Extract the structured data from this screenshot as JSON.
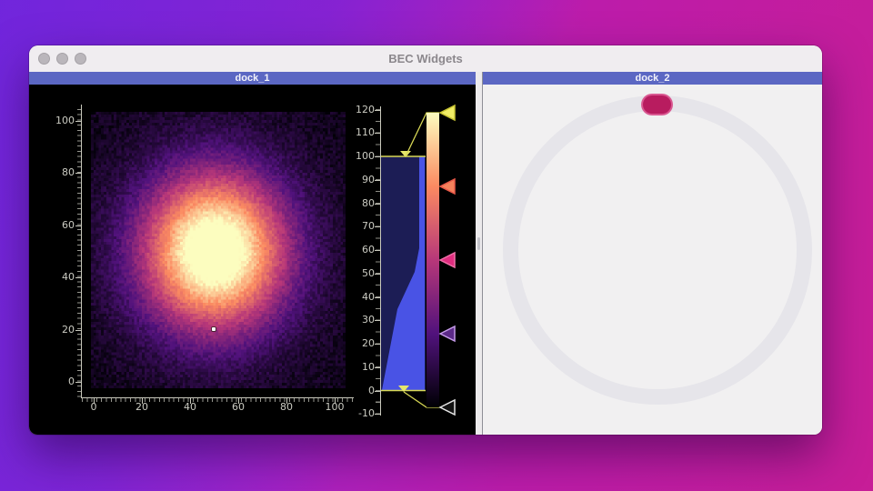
{
  "window": {
    "title": "BEC Widgets",
    "traffic_lights": [
      "close",
      "minimize",
      "zoom"
    ]
  },
  "docks": {
    "dock1": {
      "title": "dock_1"
    },
    "dock2": {
      "title": "dock_2"
    }
  },
  "chart_data": {
    "type": "heatmap",
    "title": "",
    "xlabel": "",
    "ylabel": "",
    "x_ticks": [
      0,
      20,
      40,
      60,
      80,
      100
    ],
    "y_ticks": [
      0,
      20,
      40,
      60,
      80,
      100
    ],
    "xlim": [
      0,
      105
    ],
    "ylim": [
      -2,
      103
    ],
    "image": {
      "distribution": "gaussian-with-noise",
      "center_x": 48,
      "center_y": 50,
      "sigma": 20,
      "amplitude": 112,
      "noise": 10,
      "colormap": "magma",
      "levels": [
        0,
        100
      ],
      "grid_size": 100
    },
    "marker": {
      "x": 50,
      "y": 20
    }
  },
  "histogram_lut": {
    "axis_ticks": [
      120,
      110,
      100,
      90,
      80,
      70,
      60,
      50,
      40,
      30,
      20,
      10,
      0,
      -10
    ],
    "region_levels": [
      0,
      100
    ],
    "region_fill": "#23246a",
    "histogram_fill": "#4d58f2",
    "line_color": "#d8d855",
    "gradient_stops": [
      "#000004",
      "#51127c",
      "#b73779",
      "#fb8a61",
      "#fcfdbf"
    ],
    "tick_markers": [
      {
        "pos": 1.0,
        "fill": "#f2ee66",
        "stroke": "#c8c432"
      },
      {
        "pos": 0.75,
        "fill": "#f5825c",
        "stroke": "#e85848"
      },
      {
        "pos": 0.5,
        "fill": "#e02e80",
        "stroke": "#f070a8"
      },
      {
        "pos": 0.25,
        "fill": "#5c2a88",
        "stroke": "#c49ae8"
      },
      {
        "pos": 0.0,
        "fill": "#121212",
        "stroke": "#e6e6e6"
      }
    ]
  },
  "spinner": {
    "indicator_color": "#b81c5f",
    "track_color": "#e6e5ea"
  }
}
